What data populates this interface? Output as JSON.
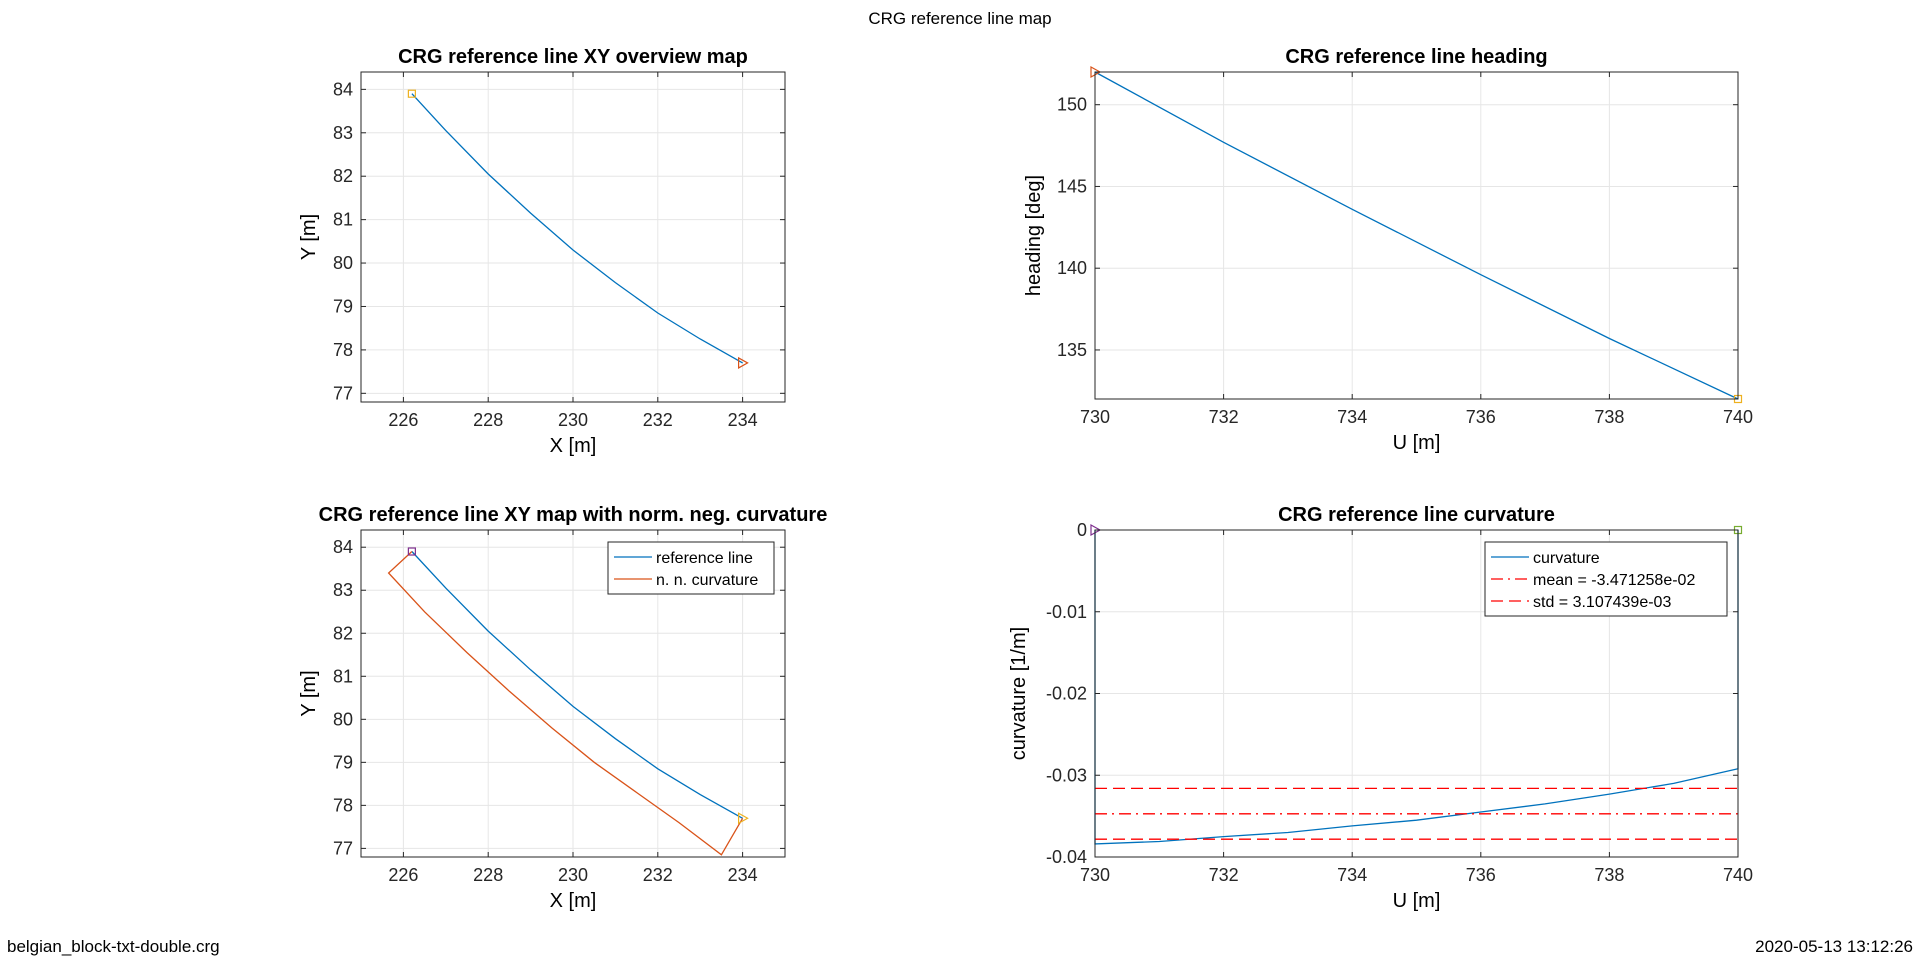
{
  "figure": {
    "title": "CRG reference line map",
    "footer_left": "belgian_block-txt-double.crg",
    "footer_right": "2020-05-13 13:12:26"
  },
  "colors": {
    "blue": "#0072BD",
    "orange": "#D95319",
    "yellow": "#EDB120",
    "purple": "#7E2F8E",
    "green": "#77AC30",
    "red_dashed": "#FF0000",
    "grid": "#E6E6E6"
  },
  "chart_data": [
    {
      "type": "line",
      "title": "CRG reference line XY overview map",
      "xlabel": "X [m]",
      "ylabel": "Y [m]",
      "xlim": [
        225,
        235
      ],
      "ylim": [
        76.8,
        84.4
      ],
      "xticks": [
        226,
        228,
        230,
        232,
        234
      ],
      "yticks": [
        77,
        78,
        79,
        80,
        81,
        82,
        83,
        84
      ],
      "grid": true,
      "series": [
        {
          "color": "blue",
          "style": "solid",
          "x": [
            226.2,
            227.0,
            228.0,
            229.0,
            230.0,
            231.0,
            232.0,
            233.0,
            234.0
          ],
          "y": [
            83.9,
            83.05,
            82.05,
            81.15,
            80.3,
            79.55,
            78.85,
            78.25,
            77.7
          ]
        }
      ],
      "markers": [
        {
          "shape": "square",
          "color": "yellow",
          "x": 226.2,
          "y": 83.9
        },
        {
          "shape": "triangle-right",
          "color": "orange",
          "x": 234.0,
          "y": 77.7
        }
      ]
    },
    {
      "type": "line",
      "title": "CRG reference line heading",
      "xlabel": "U [m]",
      "ylabel": "heading [deg]",
      "xlim": [
        730,
        740
      ],
      "ylim": [
        132,
        152
      ],
      "xticks": [
        730,
        732,
        734,
        736,
        738,
        740
      ],
      "yticks": [
        135,
        140,
        145,
        150
      ],
      "grid": true,
      "series": [
        {
          "color": "blue",
          "style": "solid",
          "x": [
            730,
            732,
            734,
            736,
            738,
            740
          ],
          "y": [
            152.0,
            147.7,
            143.6,
            139.6,
            135.7,
            132.0
          ]
        }
      ],
      "markers": [
        {
          "shape": "triangle-right",
          "color": "orange",
          "x": 730,
          "y": 152.0
        },
        {
          "shape": "square",
          "color": "yellow",
          "x": 740,
          "y": 132.0
        }
      ]
    },
    {
      "type": "line",
      "title": "CRG reference line XY map with norm. neg. curvature",
      "xlabel": "X [m]",
      "ylabel": "Y [m]",
      "xlim": [
        225,
        235
      ],
      "ylim": [
        76.8,
        84.4
      ],
      "xticks": [
        226,
        228,
        230,
        232,
        234
      ],
      "yticks": [
        77,
        78,
        79,
        80,
        81,
        82,
        83,
        84
      ],
      "grid": true,
      "legend": {
        "position": "top-right",
        "entries": [
          "reference line",
          "n. n. curvature"
        ]
      },
      "series": [
        {
          "name": "reference line",
          "color": "blue",
          "style": "solid",
          "x": [
            226.2,
            227.0,
            228.0,
            229.0,
            230.0,
            231.0,
            232.0,
            233.0,
            234.0
          ],
          "y": [
            83.9,
            83.05,
            82.05,
            81.15,
            80.3,
            79.55,
            78.85,
            78.25,
            77.7
          ]
        },
        {
          "name": "n. n. curvature",
          "color": "orange",
          "style": "solid",
          "x": [
            226.2,
            225.65,
            226.5,
            227.5,
            228.5,
            229.5,
            230.5,
            231.5,
            232.5,
            233.5,
            234.0
          ],
          "y": [
            83.9,
            83.4,
            82.5,
            81.55,
            80.65,
            79.8,
            79.0,
            78.3,
            77.6,
            76.85,
            77.7
          ]
        }
      ],
      "markers": [
        {
          "shape": "square",
          "color": "purple",
          "x": 226.2,
          "y": 83.9
        },
        {
          "shape": "triangle-right",
          "color": "yellow",
          "x": 234.0,
          "y": 77.7
        }
      ]
    },
    {
      "type": "line",
      "title": "CRG reference line curvature",
      "xlabel": "U [m]",
      "ylabel": "curvature [1/m]",
      "xlim": [
        730,
        740
      ],
      "ylim": [
        -0.04,
        0
      ],
      "xticks": [
        730,
        732,
        734,
        736,
        738,
        740
      ],
      "yticks": [
        0,
        -0.01,
        -0.02,
        -0.03,
        -0.04
      ],
      "grid": true,
      "legend": {
        "position": "top-right",
        "entries": [
          "curvature",
          "mean = -3.471258e-02",
          "std = 3.107439e-03"
        ]
      },
      "series": [
        {
          "name": "curvature",
          "color": "blue",
          "style": "solid",
          "x": [
            730,
            730,
            731,
            732,
            733,
            734,
            735,
            736,
            737,
            738,
            739,
            740,
            740
          ],
          "y": [
            0,
            -0.0384,
            -0.0381,
            -0.0375,
            -0.037,
            -0.0362,
            -0.0355,
            -0.0345,
            -0.0335,
            -0.0323,
            -0.031,
            -0.0292,
            0
          ]
        },
        {
          "name": "mean",
          "color": "red_dashed",
          "style": "dashdot",
          "x": [
            730,
            740
          ],
          "y": [
            -0.03471258,
            -0.03471258
          ]
        },
        {
          "name": "std",
          "color": "red_dashed",
          "style": "dashed",
          "x": [
            730,
            740
          ],
          "y": [
            -0.03160514,
            -0.03160514
          ]
        },
        {
          "name": "std",
          "color": "red_dashed",
          "style": "dashed",
          "x": [
            730,
            740
          ],
          "y": [
            -0.03782002,
            -0.03782002
          ]
        }
      ],
      "markers": [
        {
          "shape": "triangle-right",
          "color": "purple",
          "x": 730,
          "y": 0
        },
        {
          "shape": "square",
          "color": "green",
          "x": 740,
          "y": 0
        }
      ]
    }
  ]
}
